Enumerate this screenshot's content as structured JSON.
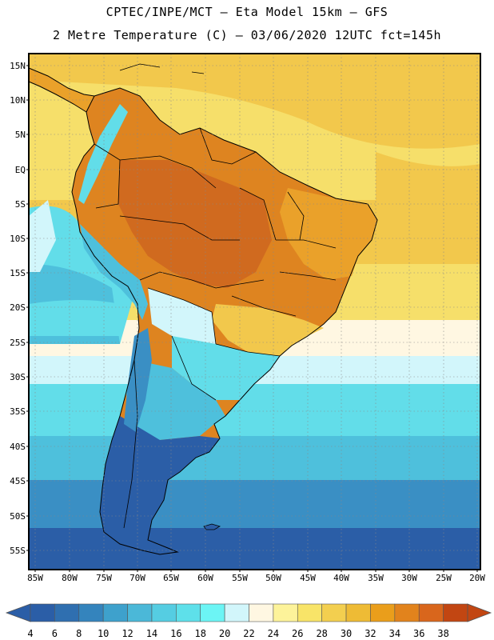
{
  "title": {
    "line1": "CPTEC/INPE/MCT –  Eta Model 15km – GFS",
    "line2": "2 Metre Temperature (C) – 03/06/2020 12UTC fct=145h"
  },
  "lat_labels": [
    "15N",
    "10N",
    "5N",
    "EQ",
    "5S",
    "10S",
    "15S",
    "20S",
    "25S",
    "30S",
    "35S",
    "40S",
    "45S",
    "50S",
    "55S"
  ],
  "lon_labels": [
    "85W",
    "80W",
    "75W",
    "70W",
    "65W",
    "60W",
    "55W",
    "50W",
    "45W",
    "40W",
    "35W",
    "30W",
    "25W",
    "20W"
  ],
  "colorbar": {
    "labels": [
      "4",
      "6",
      "8",
      "10",
      "12",
      "14",
      "16",
      "18",
      "20",
      "22",
      "24",
      "26",
      "28",
      "30",
      "32",
      "34",
      "36",
      "38"
    ],
    "colors": [
      "#2b5ea7",
      "#2f6fb0",
      "#3484bd",
      "#3ea1cc",
      "#4bb8d8",
      "#55cde2",
      "#5ee0ea",
      "#6cf5f5",
      "#d2f6fb",
      "#fff7e2",
      "#fdf39a",
      "#f8e468",
      "#f3cf4f",
      "#eebb35",
      "#ea9e1b",
      "#e2831c",
      "#d9661c",
      "#c24612"
    ],
    "low_color": "#2b5ea7",
    "high_color": "#c24612"
  },
  "map_colors": {
    "deep_blue": "#2b5ea7",
    "blue": "#3a8fc4",
    "cyan": "#4ec0dc",
    "light_cyan": "#62dde9",
    "pale": "#d2f6fb",
    "cream": "#fff7e2",
    "yellow": "#f6df6a",
    "gold": "#f2c84c",
    "orange": "#eaa12a",
    "dark_orange": "#de8420",
    "red_orange": "#d06a1f",
    "grid": "#888888",
    "border": "#000000"
  }
}
